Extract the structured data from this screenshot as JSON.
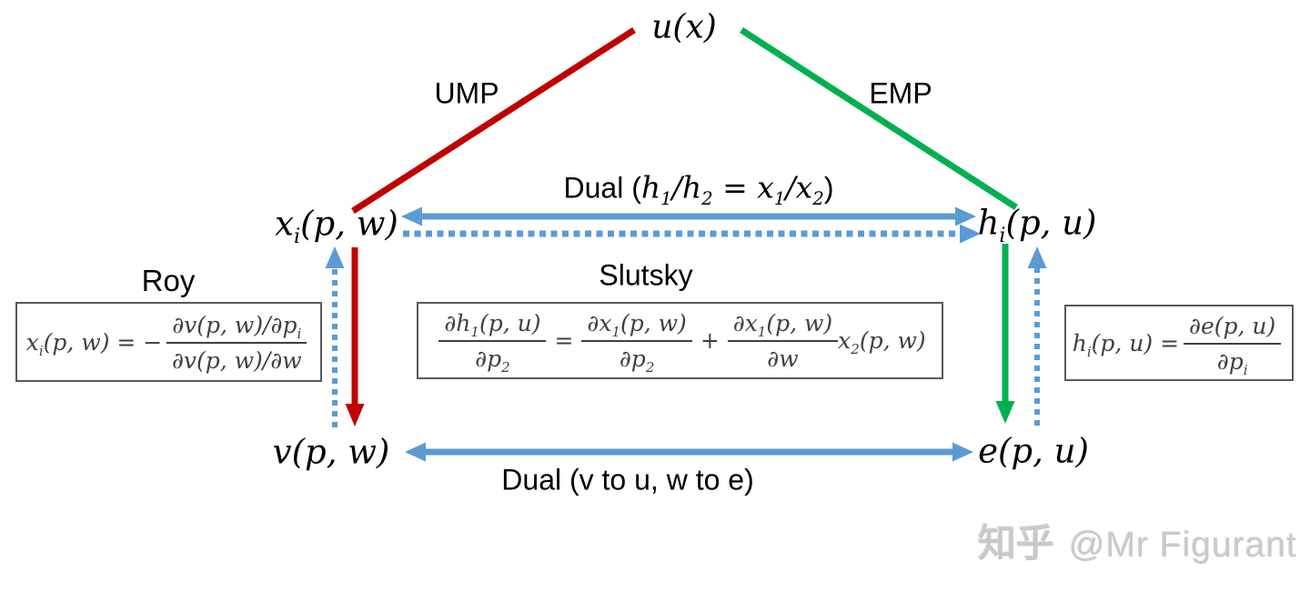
{
  "colors": {
    "ump_red": "#C00000",
    "emp_green": "#00B050",
    "dual_blue": "#5B9BD5",
    "formula_gray": "#3F4045",
    "box_border": "#595959",
    "watermark_gray": "#C9C9C9"
  },
  "nodes": {
    "utility": "u(x)",
    "marshallian_demand": "x_{i}(p, w)",
    "hicksian_demand": "h_{i}(p, u)",
    "indirect_utility": "v(p, w)",
    "expenditure": "e(p, u)"
  },
  "edges": {
    "ump": "UMP",
    "emp": "EMP",
    "dual_top_prefix": "Dual (",
    "dual_top_math": "h_{1}/h_{2} = x_{1}/x_{2}",
    "dual_top_suffix": ")",
    "dual_bottom": "Dual (v to u, w to e)"
  },
  "formulas": {
    "roy": {
      "title": "Roy",
      "lhs": "x_{i}(p, w) = −",
      "numerator": "∂v(p, w)/∂p_{i}",
      "denominator": "∂v(p, w)/∂w"
    },
    "slutsky": {
      "title": "Slutsky",
      "frac1_num": "∂h_{1}(p, u)",
      "frac1_den": "∂p_{2}",
      "equals": "=",
      "frac2_num": "∂x_{1}(p, w)",
      "frac2_den": "∂p_{2}",
      "plus": "+",
      "frac3_num": "∂x_{1}(p, w)",
      "frac3_den": "∂w",
      "tail": "x_{2}(p, w)"
    },
    "shephard": {
      "lhs": "h_{i}(p, u) =",
      "numerator": "∂e(p, u)",
      "denominator": "∂p_{i}"
    }
  },
  "watermark": {
    "brand": "知乎",
    "handle": "@Mr Figurant"
  }
}
